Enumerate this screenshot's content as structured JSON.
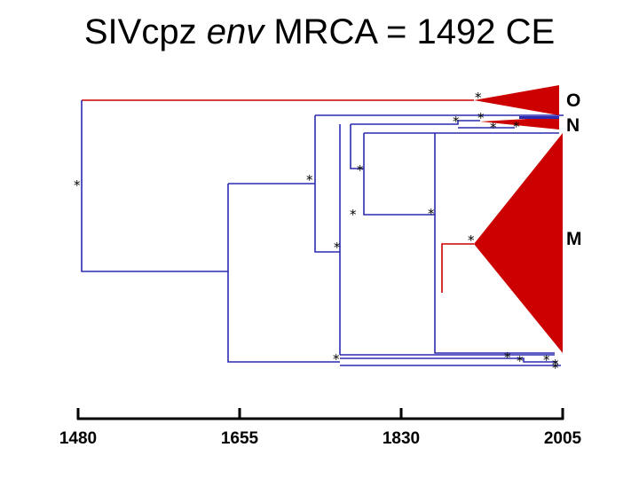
{
  "title": {
    "part1": "SIVcpz ",
    "part2": "env",
    "part3": " MRCA = 1492 CE"
  },
  "clades": {
    "o": "O",
    "n": "N",
    "m": "M"
  },
  "marker": "*",
  "axis": {
    "ticks": [
      "1480",
      "1655",
      "1830",
      "2005"
    ]
  },
  "colors": {
    "blue": "#2b2bb0",
    "red": "#cc0000"
  }
}
